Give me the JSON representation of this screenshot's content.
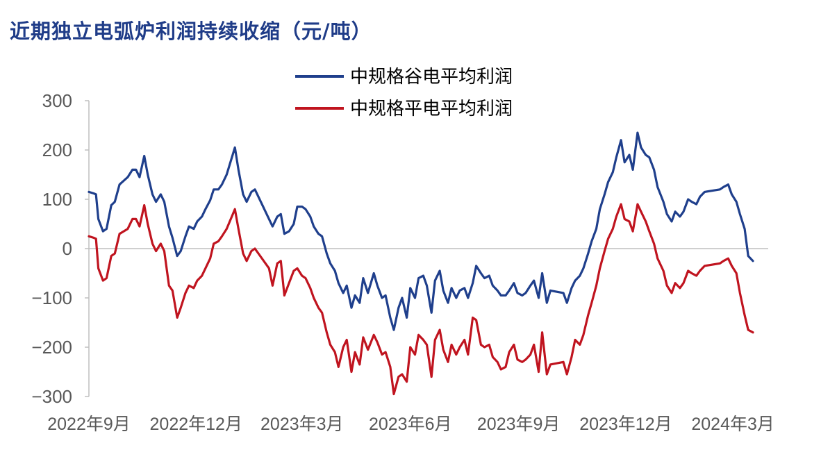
{
  "title": "近期独立电弧炉利润持续收缩（元/吨）",
  "colors": {
    "title": "#1f3c88",
    "axis": "#bfbfbf",
    "tick_text": "#595959"
  },
  "chart_data": {
    "type": "line",
    "title": "近期独立电弧炉利润持续收缩（元/吨）",
    "xlabel": "",
    "ylabel": "",
    "ylim": [
      -300,
      300
    ],
    "y_ticks": [
      300,
      200,
      100,
      0,
      -100,
      -200,
      -300
    ],
    "y_tick_labels": [
      "300",
      "200",
      "100",
      "0",
      "−100",
      "−200",
      "−300"
    ],
    "x_range": [
      "2022-09-01",
      "2024-03-31"
    ],
    "x_ticks": [
      "2022-09",
      "2022-12",
      "2023-03",
      "2023-06",
      "2023-09",
      "2023-12",
      "2024-03"
    ],
    "x_tick_labels": [
      "2022年9月",
      "2022年12月",
      "2023年3月",
      "2023年6月",
      "2023年9月",
      "2023年12月",
      "2024年3月"
    ],
    "legend_position": "top-center",
    "grid": false,
    "series": [
      {
        "name": "中规格谷电平均利润",
        "color": "#1f3f8c",
        "x": [
          "2022-09-01",
          "2022-09-05",
          "2022-09-07",
          "2022-09-09",
          "2022-09-13",
          "2022-09-16",
          "2022-09-20",
          "2022-09-23",
          "2022-09-27",
          "2022-10-04",
          "2022-10-08",
          "2022-10-11",
          "2022-10-14",
          "2022-10-18",
          "2022-10-21",
          "2022-10-25",
          "2022-10-28",
          "2022-11-01",
          "2022-11-04",
          "2022-11-08",
          "2022-11-11",
          "2022-11-15",
          "2022-11-18",
          "2022-11-22",
          "2022-11-25",
          "2022-11-29",
          "2022-12-02",
          "2022-12-06",
          "2022-12-09",
          "2022-12-13",
          "2022-12-16",
          "2022-12-20",
          "2022-12-23",
          "2022-12-27",
          "2023-01-03",
          "2023-01-06",
          "2023-01-10",
          "2023-01-13",
          "2023-01-17",
          "2023-01-20",
          "2023-02-01",
          "2023-02-04",
          "2023-02-08",
          "2023-02-11",
          "2023-02-14",
          "2023-02-18",
          "2023-02-22",
          "2023-02-25",
          "2023-03-01",
          "2023-03-04",
          "2023-03-08",
          "2023-03-11",
          "2023-03-15",
          "2023-03-18",
          "2023-03-22",
          "2023-03-25",
          "2023-03-29",
          "2023-04-01",
          "2023-04-05",
          "2023-04-08",
          "2023-04-12",
          "2023-04-15",
          "2023-04-19",
          "2023-04-22",
          "2023-04-26",
          "2023-05-01",
          "2023-05-04",
          "2023-05-08",
          "2023-05-11",
          "2023-05-15",
          "2023-05-18",
          "2023-05-22",
          "2023-05-25",
          "2023-05-29",
          "2023-06-01",
          "2023-06-05",
          "2023-06-08",
          "2023-06-12",
          "2023-06-15",
          "2023-06-19",
          "2023-06-22",
          "2023-06-26",
          "2023-06-29",
          "2023-07-03",
          "2023-07-06",
          "2023-07-10",
          "2023-07-13",
          "2023-07-17",
          "2023-07-20",
          "2023-07-24",
          "2023-07-27",
          "2023-07-31",
          "2023-08-03",
          "2023-08-07",
          "2023-08-10",
          "2023-08-14",
          "2023-08-17",
          "2023-08-21",
          "2023-08-24",
          "2023-08-28",
          "2023-08-31",
          "2023-09-04",
          "2023-09-07",
          "2023-09-11",
          "2023-09-14",
          "2023-09-18",
          "2023-09-21",
          "2023-09-25",
          "2023-09-28",
          "2023-10-09",
          "2023-10-12",
          "2023-10-16",
          "2023-10-19",
          "2023-10-23",
          "2023-10-26",
          "2023-10-30",
          "2023-11-02",
          "2023-11-06",
          "2023-11-09",
          "2023-11-13",
          "2023-11-16",
          "2023-11-20",
          "2023-11-23",
          "2023-11-27",
          "2023-11-30",
          "2023-12-04",
          "2023-12-07",
          "2023-12-11",
          "2023-12-14",
          "2023-12-18",
          "2023-12-21",
          "2023-12-25",
          "2023-12-28",
          "2024-01-02",
          "2024-01-05",
          "2024-01-09",
          "2024-01-12",
          "2024-01-16",
          "2024-01-19",
          "2024-01-23",
          "2024-01-26",
          "2024-01-30",
          "2024-02-02",
          "2024-02-06",
          "2024-02-19",
          "2024-02-22",
          "2024-02-26",
          "2024-02-29",
          "2024-03-04",
          "2024-03-07",
          "2024-03-11",
          "2024-03-14",
          "2024-03-18"
        ],
        "values": [
          115,
          112,
          110,
          60,
          35,
          40,
          88,
          95,
          130,
          145,
          160,
          160,
          145,
          188,
          150,
          110,
          95,
          110,
          95,
          45,
          22,
          -15,
          -5,
          25,
          45,
          40,
          55,
          65,
          80,
          98,
          120,
          120,
          130,
          150,
          205,
          160,
          110,
          95,
          115,
          120,
          60,
          45,
          65,
          70,
          30,
          35,
          50,
          85,
          85,
          80,
          65,
          45,
          30,
          25,
          -10,
          -30,
          -45,
          -70,
          -90,
          -75,
          -120,
          -95,
          -110,
          -60,
          -90,
          -50,
          -75,
          -100,
          -95,
          -140,
          -165,
          -120,
          -100,
          -140,
          -80,
          -100,
          -60,
          -55,
          -75,
          -130,
          -65,
          -45,
          -85,
          -110,
          -80,
          -100,
          -85,
          -80,
          -100,
          -70,
          -35,
          -50,
          -60,
          -55,
          -75,
          -85,
          -95,
          -95,
          -85,
          -70,
          -90,
          -95,
          -90,
          -75,
          -65,
          -100,
          -50,
          -110,
          -85,
          -90,
          -110,
          -80,
          -65,
          -55,
          -40,
          -10,
          15,
          40,
          80,
          110,
          135,
          155,
          185,
          220,
          175,
          190,
          160,
          235,
          205,
          190,
          185,
          160,
          125,
          95,
          70,
          55,
          75,
          65,
          75,
          100,
          95,
          90,
          105,
          115,
          120,
          125,
          130,
          110,
          95,
          70,
          40,
          -15,
          -25
        ]
      },
      {
        "name": "中规格平电平均利润",
        "color": "#c0141f",
        "x": [
          "2022-09-01",
          "2022-09-05",
          "2022-09-07",
          "2022-09-09",
          "2022-09-13",
          "2022-09-16",
          "2022-09-20",
          "2022-09-23",
          "2022-09-27",
          "2022-10-04",
          "2022-10-08",
          "2022-10-11",
          "2022-10-14",
          "2022-10-18",
          "2022-10-21",
          "2022-10-25",
          "2022-10-28",
          "2022-11-01",
          "2022-11-04",
          "2022-11-08",
          "2022-11-11",
          "2022-11-15",
          "2022-11-18",
          "2022-11-22",
          "2022-11-25",
          "2022-11-29",
          "2022-12-02",
          "2022-12-06",
          "2022-12-09",
          "2022-12-13",
          "2022-12-16",
          "2022-12-20",
          "2022-12-23",
          "2022-12-27",
          "2023-01-03",
          "2023-01-06",
          "2023-01-10",
          "2023-01-13",
          "2023-01-17",
          "2023-01-20",
          "2023-02-01",
          "2023-02-04",
          "2023-02-08",
          "2023-02-11",
          "2023-02-14",
          "2023-02-18",
          "2023-02-22",
          "2023-02-25",
          "2023-03-01",
          "2023-03-04",
          "2023-03-08",
          "2023-03-11",
          "2023-03-15",
          "2023-03-18",
          "2023-03-22",
          "2023-03-25",
          "2023-03-29",
          "2023-04-01",
          "2023-04-05",
          "2023-04-08",
          "2023-04-12",
          "2023-04-15",
          "2023-04-19",
          "2023-04-22",
          "2023-04-26",
          "2023-05-01",
          "2023-05-04",
          "2023-05-08",
          "2023-05-11",
          "2023-05-15",
          "2023-05-18",
          "2023-05-22",
          "2023-05-25",
          "2023-05-29",
          "2023-06-01",
          "2023-06-05",
          "2023-06-08",
          "2023-06-12",
          "2023-06-15",
          "2023-06-19",
          "2023-06-22",
          "2023-06-26",
          "2023-06-29",
          "2023-07-03",
          "2023-07-06",
          "2023-07-10",
          "2023-07-13",
          "2023-07-17",
          "2023-07-20",
          "2023-07-24",
          "2023-07-27",
          "2023-07-31",
          "2023-08-03",
          "2023-08-07",
          "2023-08-10",
          "2023-08-14",
          "2023-08-17",
          "2023-08-21",
          "2023-08-24",
          "2023-08-28",
          "2023-08-31",
          "2023-09-04",
          "2023-09-07",
          "2023-09-11",
          "2023-09-14",
          "2023-09-18",
          "2023-09-21",
          "2023-09-25",
          "2023-09-28",
          "2023-10-09",
          "2023-10-12",
          "2023-10-16",
          "2023-10-19",
          "2023-10-23",
          "2023-10-26",
          "2023-10-30",
          "2023-11-02",
          "2023-11-06",
          "2023-11-09",
          "2023-11-13",
          "2023-11-16",
          "2023-11-20",
          "2023-11-23",
          "2023-11-27",
          "2023-11-30",
          "2023-12-04",
          "2023-12-07",
          "2023-12-11",
          "2023-12-14",
          "2023-12-18",
          "2023-12-21",
          "2023-12-25",
          "2023-12-28",
          "2024-01-02",
          "2024-01-05",
          "2024-01-09",
          "2024-01-12",
          "2024-01-16",
          "2024-01-19",
          "2024-01-23",
          "2024-01-26",
          "2024-01-30",
          "2024-02-02",
          "2024-02-06",
          "2024-02-19",
          "2024-02-22",
          "2024-02-26",
          "2024-02-29",
          "2024-03-04",
          "2024-03-07",
          "2024-03-11",
          "2024-03-14",
          "2024-03-18"
        ],
        "values": [
          25,
          22,
          20,
          -40,
          -65,
          -60,
          -15,
          -10,
          30,
          40,
          60,
          60,
          45,
          88,
          50,
          10,
          -5,
          10,
          -5,
          -75,
          -85,
          -140,
          -120,
          -90,
          -75,
          -80,
          -65,
          -55,
          -40,
          -20,
          10,
          15,
          25,
          40,
          80,
          40,
          -10,
          -25,
          -5,
          0,
          -40,
          -75,
          -30,
          -25,
          -95,
          -70,
          -45,
          -40,
          -55,
          -60,
          -80,
          -100,
          -120,
          -130,
          -170,
          -195,
          -210,
          -240,
          -200,
          -185,
          -250,
          -210,
          -235,
          -180,
          -205,
          -175,
          -190,
          -215,
          -210,
          -240,
          -295,
          -260,
          -255,
          -270,
          -200,
          -215,
          -175,
          -185,
          -195,
          -260,
          -185,
          -165,
          -205,
          -230,
          -195,
          -215,
          -200,
          -185,
          -215,
          -140,
          -145,
          -195,
          -200,
          -195,
          -220,
          -230,
          -245,
          -240,
          -210,
          -195,
          -225,
          -230,
          -225,
          -215,
          -195,
          -250,
          -170,
          -255,
          -235,
          -230,
          -255,
          -220,
          -185,
          -195,
          -175,
          -135,
          -110,
          -75,
          -40,
          -5,
          20,
          40,
          65,
          90,
          60,
          55,
          35,
          90,
          75,
          55,
          35,
          10,
          -20,
          -45,
          -75,
          -90,
          -70,
          -80,
          -70,
          -45,
          -50,
          -55,
          -45,
          -35,
          -30,
          -25,
          -20,
          -35,
          -50,
          -90,
          -135,
          -165,
          -170
        ]
      }
    ]
  }
}
